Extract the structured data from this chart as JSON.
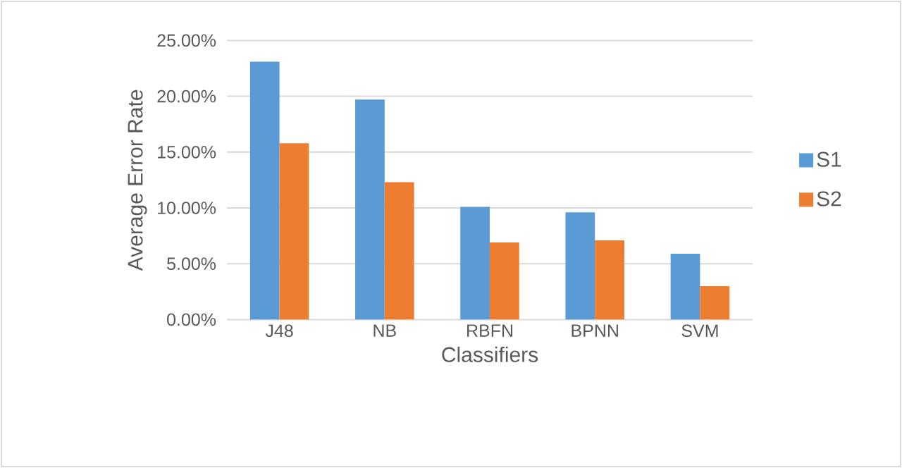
{
  "chart_data": {
    "type": "bar",
    "xlabel": "Classifiers",
    "ylabel": "Average Error Rate",
    "categories": [
      "J48",
      "NB",
      "RBFN",
      "BPNN",
      "SVM"
    ],
    "series": [
      {
        "name": "S1",
        "color": "#5b9bd5",
        "values": [
          23.1,
          19.7,
          10.1,
          9.6,
          5.9
        ]
      },
      {
        "name": "S2",
        "color": "#ed7d31",
        "values": [
          15.8,
          12.3,
          6.9,
          7.1,
          3.0
        ]
      }
    ],
    "ylim": [
      0,
      25
    ],
    "yticks": [
      {
        "value": 0,
        "label": "0.00%"
      },
      {
        "value": 5,
        "label": "5.00%"
      },
      {
        "value": 10,
        "label": "10.00%"
      },
      {
        "value": 15,
        "label": "15.00%"
      },
      {
        "value": 20,
        "label": "20.00%"
      },
      {
        "value": 25,
        "label": "25.00%"
      }
    ],
    "grid": "y",
    "legend": "right"
  }
}
